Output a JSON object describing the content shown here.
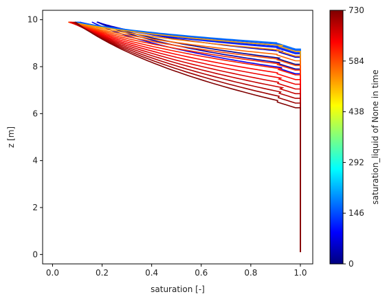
{
  "chart_data": {
    "type": "line",
    "xlabel": "saturation [-]",
    "ylabel": "z [m]",
    "xlim": [
      -0.04,
      1.05
    ],
    "ylim": [
      -0.4,
      10.4
    ],
    "x_ticks": [
      0.0,
      0.2,
      0.4,
      0.6,
      0.8,
      1.0
    ],
    "x_tick_labels": [
      "0.0",
      "0.2",
      "0.4",
      "0.6",
      "0.8",
      "1.0"
    ],
    "y_ticks": [
      0,
      2,
      4,
      6,
      8,
      10
    ],
    "y_tick_labels": [
      "0",
      "2",
      "4",
      "6",
      "8",
      "10"
    ],
    "grid": false,
    "colormap": "jet",
    "colorbar": {
      "label": "saturation_liquid of None in time",
      "range": [
        0,
        730
      ],
      "ticks": [
        0,
        146,
        292,
        438,
        584,
        730
      ],
      "tick_labels": [
        "0",
        "146",
        "292",
        "438",
        "584",
        "730"
      ],
      "stops": [
        "#00007f",
        "#0000ff",
        "#007fff",
        "#00ffff",
        "#7fff7f",
        "#ffff00",
        "#ff7f00",
        "#ff0000",
        "#7f0000"
      ]
    },
    "series": [
      {
        "time": 10,
        "front_z": 8.25,
        "surface_x": 0.16
      },
      {
        "time": 30,
        "front_z": 8.05,
        "surface_x": 0.16
      },
      {
        "time": 55,
        "front_z": 8.55,
        "surface_x": 0.15
      },
      {
        "time": 80,
        "front_z": 7.85,
        "surface_x": 0.14
      },
      {
        "time": 105,
        "front_z": 8.7,
        "surface_x": 0.07
      },
      {
        "time": 130,
        "front_z": 8.75,
        "surface_x": 0.06
      },
      {
        "time": 150,
        "front_z": 8.85,
        "surface_x": 0.05
      },
      {
        "time": 170,
        "front_z": 8.9,
        "surface_x": 0.04
      },
      {
        "time": 520,
        "front_z": 8.8,
        "surface_x": 0.025
      },
      {
        "time": 545,
        "front_z": 8.6,
        "surface_x": 0.03
      },
      {
        "time": 565,
        "front_z": 8.4,
        "surface_x": 0.03
      },
      {
        "time": 585,
        "front_z": 8.2,
        "surface_x": 0.035
      },
      {
        "time": 605,
        "front_z": 8.0,
        "surface_x": 0.04
      },
      {
        "time": 620,
        "front_z": 7.8,
        "surface_x": 0.045
      },
      {
        "time": 635,
        "front_z": 7.6,
        "surface_x": 0.05
      },
      {
        "time": 650,
        "front_z": 7.4,
        "surface_x": 0.055
      },
      {
        "time": 665,
        "front_z": 7.2,
        "surface_x": 0.06
      },
      {
        "time": 680,
        "front_z": 7.0,
        "surface_x": 0.065
      },
      {
        "time": 695,
        "front_z": 6.8,
        "surface_x": 0.07
      },
      {
        "time": 710,
        "front_z": 6.6,
        "surface_x": 0.075
      },
      {
        "time": 730,
        "front_z": 6.4,
        "surface_x": 0.08
      }
    ]
  }
}
